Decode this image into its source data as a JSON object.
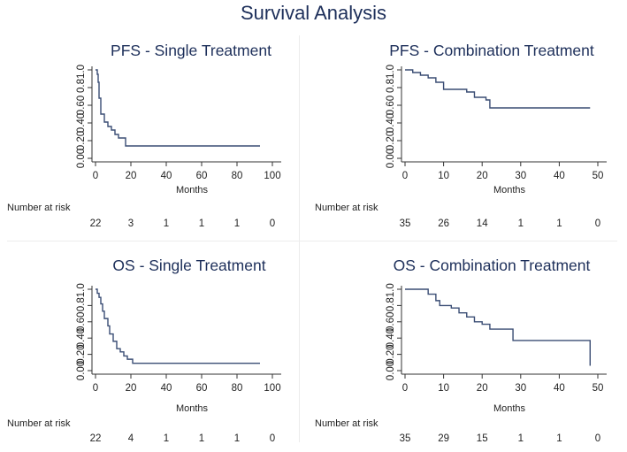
{
  "title": "Survival Analysis",
  "style": {
    "line_color": "#3a4d74",
    "axis_color": "#333333",
    "title_color": "#1d2f5a"
  },
  "chart_data": [
    {
      "type": "line",
      "title": "PFS - Single Treatment",
      "xlabel": "Months",
      "ylabel": "",
      "xlim": [
        0,
        100
      ],
      "ylim": [
        0,
        1
      ],
      "xticks": [
        "0",
        "20",
        "40",
        "60",
        "80",
        "100"
      ],
      "yticks": [
        "0.00",
        "0.20",
        "0.40",
        "0.60",
        "0.81.0"
      ],
      "risk_label": "Number at risk",
      "risk_counts": [
        "22",
        "3",
        "1",
        "1",
        "1",
        "0"
      ],
      "series": [
        {
          "x": [
            0,
            1,
            1.5,
            2,
            3,
            5,
            7,
            9,
            11,
            13,
            17,
            93
          ],
          "y": [
            1.0,
            0.95,
            0.86,
            0.68,
            0.5,
            0.41,
            0.36,
            0.32,
            0.27,
            0.23,
            0.14,
            0.14
          ]
        }
      ]
    },
    {
      "type": "line",
      "title": "PFS - Combination Treatment",
      "xlabel": "Months",
      "ylabel": "",
      "xlim": [
        0,
        50
      ],
      "ylim": [
        0,
        1
      ],
      "xticks": [
        "0",
        "10",
        "20",
        "30",
        "40",
        "50"
      ],
      "yticks": [
        "0.00",
        "0.20",
        "0.40",
        "0.60",
        "0.81.0"
      ],
      "risk_label": "Number at risk",
      "risk_counts": [
        "35",
        "26",
        "14",
        "1",
        "1",
        "0"
      ],
      "series": [
        {
          "x": [
            0,
            2,
            4,
            6,
            8,
            10,
            16,
            18,
            21,
            22,
            48
          ],
          "y": [
            1.0,
            0.97,
            0.94,
            0.91,
            0.86,
            0.78,
            0.75,
            0.69,
            0.66,
            0.57,
            0.57
          ]
        }
      ]
    },
    {
      "type": "line",
      "title": "OS - Single Treatment",
      "xlabel": "Months",
      "ylabel": "",
      "xlim": [
        0,
        100
      ],
      "ylim": [
        0,
        1
      ],
      "xticks": [
        "0",
        "20",
        "40",
        "60",
        "80",
        "100"
      ],
      "yticks": [
        "0.00",
        "0.20",
        "0.40",
        "0.60",
        "0.81.0"
      ],
      "risk_label": "Number at risk",
      "risk_counts": [
        "22",
        "4",
        "1",
        "1",
        "1",
        "0"
      ],
      "series": [
        {
          "x": [
            0,
            1,
            2,
            3,
            4,
            5,
            7,
            8,
            10,
            12,
            14,
            16,
            18,
            21,
            93
          ],
          "y": [
            1.0,
            0.95,
            0.9,
            0.82,
            0.73,
            0.64,
            0.55,
            0.45,
            0.36,
            0.27,
            0.23,
            0.18,
            0.14,
            0.09,
            0.09
          ]
        }
      ]
    },
    {
      "type": "line",
      "title": "OS - Combination Treatment",
      "xlabel": "Months",
      "ylabel": "",
      "xlim": [
        0,
        50
      ],
      "ylim": [
        0,
        1
      ],
      "xticks": [
        "0",
        "10",
        "20",
        "30",
        "40",
        "50"
      ],
      "yticks": [
        "0.00",
        "0.20",
        "0.40",
        "0.60",
        "0.81.0"
      ],
      "risk_label": "Number at risk",
      "risk_counts": [
        "35",
        "29",
        "15",
        "1",
        "1",
        "0"
      ],
      "series": [
        {
          "x": [
            0,
            6,
            8,
            9,
            12,
            14,
            16,
            18,
            20,
            22,
            28,
            48,
            48
          ],
          "y": [
            1.0,
            0.94,
            0.86,
            0.8,
            0.77,
            0.71,
            0.66,
            0.6,
            0.57,
            0.51,
            0.37,
            0.37,
            0.06
          ]
        }
      ]
    }
  ]
}
